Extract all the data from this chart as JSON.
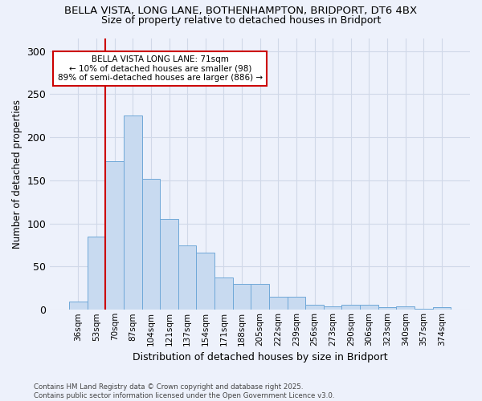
{
  "title1": "BELLA VISTA, LONG LANE, BOTHENHAMPTON, BRIDPORT, DT6 4BX",
  "title2": "Size of property relative to detached houses in Bridport",
  "xlabel": "Distribution of detached houses by size in Bridport",
  "ylabel": "Number of detached properties",
  "categories": [
    "36sqm",
    "53sqm",
    "70sqm",
    "87sqm",
    "104sqm",
    "121sqm",
    "137sqm",
    "154sqm",
    "171sqm",
    "188sqm",
    "205sqm",
    "222sqm",
    "239sqm",
    "256sqm",
    "273sqm",
    "290sqm",
    "306sqm",
    "323sqm",
    "340sqm",
    "357sqm",
    "374sqm"
  ],
  "values": [
    10,
    85,
    172,
    225,
    152,
    105,
    75,
    66,
    37,
    30,
    30,
    15,
    15,
    6,
    4,
    6,
    6,
    3,
    4,
    1,
    3
  ],
  "bar_color": "#c8daf0",
  "bar_edge_color": "#6fa8d8",
  "vline_index": 2,
  "vline_color": "#cc0000",
  "annotation_title": "BELLA VISTA LONG LANE: 71sqm",
  "annotation_line1": "← 10% of detached houses are smaller (98)",
  "annotation_line2": "89% of semi-detached houses are larger (886) →",
  "annotation_box_color": "white",
  "annotation_box_edge": "#cc0000",
  "footer1": "Contains HM Land Registry data © Crown copyright and database right 2025.",
  "footer2": "Contains public sector information licensed under the Open Government Licence v3.0.",
  "background_color": "#edf1fb",
  "grid_color": "#d0d8e8",
  "ylim": [
    0,
    315
  ],
  "yticks": [
    0,
    50,
    100,
    150,
    200,
    250,
    300
  ]
}
